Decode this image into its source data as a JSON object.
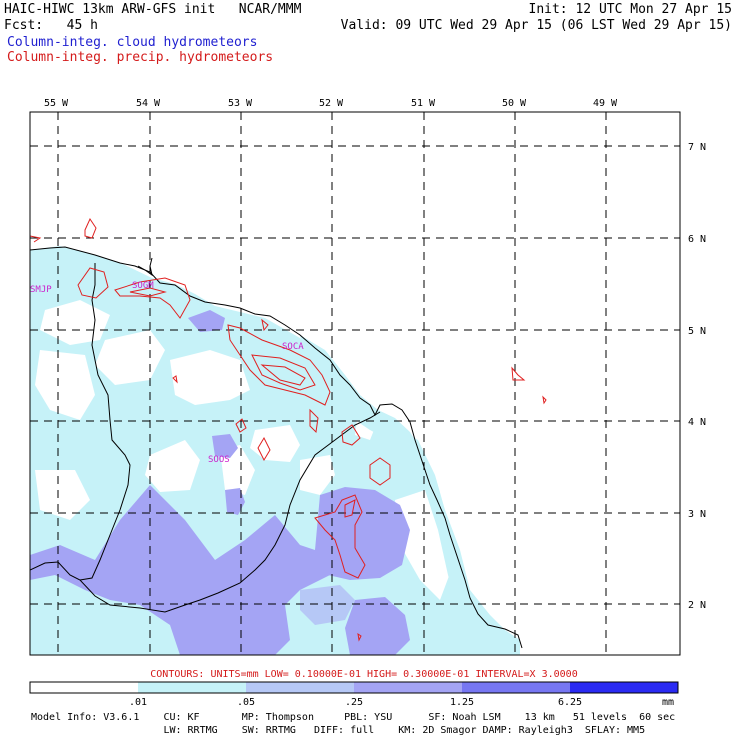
{
  "header": {
    "line1_left": "HAIC-HIWC 13km ARW-GFS init   NCAR/MMM",
    "line1_right": "Init: 12 UTC Mon 27 Apr 15",
    "line2_left": "Fcst:   45 h",
    "line2_right": "Valid: 09 UTC Wed 29 Apr 15 (06 LST Wed 29 Apr 15)",
    "legend_cloud": "Column-integ. cloud hydrometeors",
    "legend_precip": "Column-integ. precip. hydrometeors"
  },
  "colors": {
    "cloud_label": "#1f1fd0",
    "precip_label": "#d41b1b",
    "lev1": "#c6f2f8",
    "lev2": "#b6c8f6",
    "lev3": "#a4a4f4",
    "lev4": "#7777f2",
    "lev5": "#2a2af2",
    "place": "#cc22cc"
  },
  "lon_labels": [
    "55 W",
    "54 W",
    "53 W",
    "52 W",
    "51 W",
    "50 W",
    "49 W"
  ],
  "lat_labels": [
    "7 N",
    "6 N",
    "5 N",
    "4 N",
    "3 N",
    "2 N"
  ],
  "places": [
    "SMJP",
    "SOGM",
    "SOCA",
    "SOOS"
  ],
  "contours_line": "CONTOURS:  UNITS=mm  LOW= 0.10000E-01  HIGH= 0.30000E-01  INTERVAL=X  3.0000",
  "colorbar": {
    "levels": [
      ".01",
      ".05",
      ".25",
      "1.25",
      "6.25"
    ],
    "units": "mm"
  },
  "model_info": {
    "line1": "Model Info: V3.6.1    CU: KF       MP: Thompson     PBL: YSU      SF: Noah LSM    13 km   51 levels  60 sec",
    "line2": "                      LW: RRTMG    SW: RRTMG   DIFF: full    KM: 2D Smagor DAMP: Rayleigh3  SFLAY: MM5"
  }
}
